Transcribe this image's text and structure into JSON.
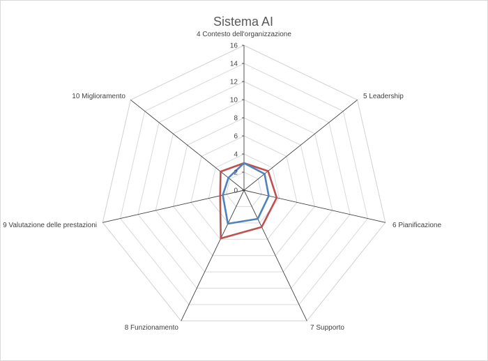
{
  "chart_data": {
    "type": "radar",
    "title": "Sistema AI",
    "categories": [
      "4 Contesto dell'organizzazione",
      "5 Leadership",
      "6 Pianificazione",
      "7 Supporto",
      "8 Funzionamento",
      "9 Valutazione delle prestazioni",
      "10 Miglioramento"
    ],
    "rlim": [
      0,
      16
    ],
    "ticks": [
      0,
      2,
      4,
      6,
      8,
      10,
      12,
      14,
      16
    ],
    "grid": true,
    "series": [
      {
        "color": "#c0504d",
        "values": [
          3,
          3.4,
          3.7,
          4.5,
          5.9,
          2.7,
          3.3
        ]
      },
      {
        "color": "#4f81bd",
        "values": [
          3,
          2.9,
          2.8,
          3.5,
          4.1,
          2.4,
          2.2
        ]
      }
    ]
  }
}
